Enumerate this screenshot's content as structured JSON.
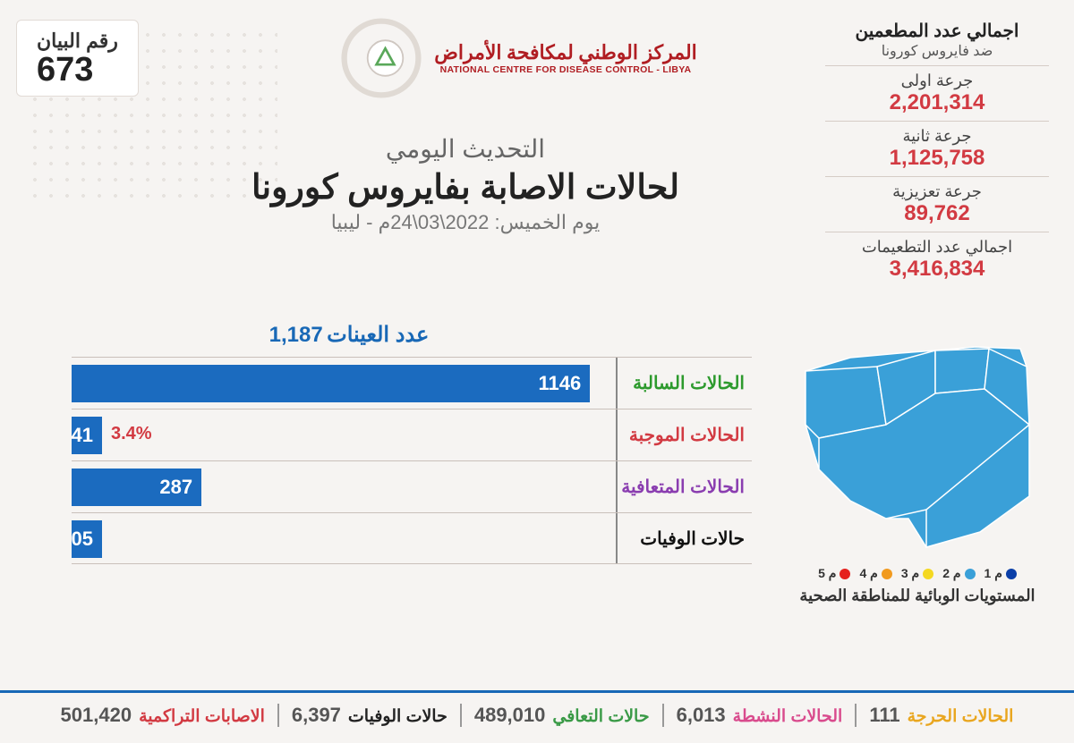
{
  "bulletin": {
    "label": "رقم البيان",
    "number": "673"
  },
  "org": {
    "name_ar": "المركز الوطني لمكافحة الأمراض",
    "name_en": "NATIONAL CENTRE FOR DISEASE CONTROL - LIBYA",
    "logo_ring_color": "#b01d22",
    "logo_triangle_color": "#5aa85a"
  },
  "headline": {
    "line1": "التحديث اليومي",
    "line2": "لحالات الاصابة بفايروس كورونا",
    "line3": "يوم الخميس: 2022\\03\\24م - ليبيا"
  },
  "vaccination": {
    "title": "اجمالي عدد المطعمين",
    "subtitle": "ضد فايروس كورونا",
    "items": [
      {
        "label": "جرعة اولى",
        "value": "2,201,314"
      },
      {
        "label": "جرعة ثانية",
        "value": "1,125,758"
      },
      {
        "label": "جرعة تعزيزية",
        "value": "89,762"
      },
      {
        "label": "اجمالي عدد التطعيمات",
        "value": "3,416,834"
      }
    ],
    "value_color": "#d23a42"
  },
  "samples": {
    "label": "عدد العينات",
    "value": "1,187"
  },
  "chart": {
    "type": "bar",
    "bar_color": "#1b6bbf",
    "axis_color": "#888888",
    "grid_color": "#c9c0ba",
    "max_value": 1187,
    "rows": [
      {
        "label": "الحالات السالبة",
        "label_color": "#2d9a2d",
        "value": 1146,
        "display": "1146",
        "extra": ""
      },
      {
        "label": "الحالات الموجبة",
        "label_color": "#d23a42",
        "value": 41,
        "display": "41",
        "extra": "3.4%"
      },
      {
        "label": "الحالات المتعافية",
        "label_color": "#8a3db0",
        "value": 287,
        "display": "287",
        "extra": ""
      },
      {
        "label": "حالات الوفيات",
        "label_color": "#111111",
        "value": 5,
        "display": "05",
        "extra": ""
      }
    ]
  },
  "map": {
    "fill_color": "#3aa0d8",
    "stroke_color": "#ffffff",
    "caption": "المستويات الوبائية للمناطقة الصحية",
    "legend": [
      {
        "label": "م 1",
        "color": "#0b3fa8"
      },
      {
        "label": "م 2",
        "color": "#3aa0d8"
      },
      {
        "label": "م 3",
        "color": "#f4d821"
      },
      {
        "label": "م 4",
        "color": "#f19a1f"
      },
      {
        "label": "م 5",
        "color": "#e5201d"
      }
    ]
  },
  "footer": [
    {
      "label": "الحالات الحرجة",
      "value": "111",
      "label_color": "#e9a61f"
    },
    {
      "label": "الحالات النشطة",
      "value": "6,013",
      "label_color": "#d94b8d"
    },
    {
      "label": "حالات التعافي",
      "value": "489,010",
      "label_color": "#3a9a47"
    },
    {
      "label": "حالات الوفيات",
      "value": "6,397",
      "label_color": "#222222"
    },
    {
      "label": "الاصابات التراكمية",
      "value": "501,420",
      "label_color": "#d23a42"
    }
  ],
  "colors": {
    "background": "#f6f4f2",
    "accent_blue": "#1868b6"
  }
}
